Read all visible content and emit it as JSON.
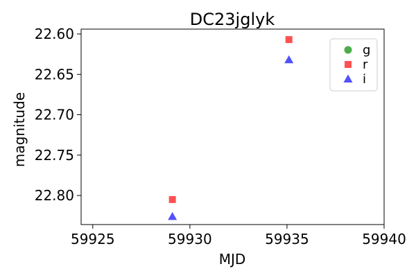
{
  "chart_data": {
    "type": "scatter",
    "title": "DC23jglyk",
    "xlabel": "MJD",
    "ylabel": "magnitude",
    "xlim": [
      59924.4,
      59940.0
    ],
    "ylim": [
      22.836,
      22.594
    ],
    "y_inverted": true,
    "grid": false,
    "legend_position": "top-right",
    "x_ticks": [
      {
        "value": 59925,
        "label": "59925"
      },
      {
        "value": 59930,
        "label": "59930"
      },
      {
        "value": 59935,
        "label": "59935"
      },
      {
        "value": 59940,
        "label": "59940"
      }
    ],
    "y_ticks": [
      {
        "value": 22.6,
        "label": "22.60"
      },
      {
        "value": 22.65,
        "label": "22.65"
      },
      {
        "value": 22.7,
        "label": "22.70"
      },
      {
        "value": 22.75,
        "label": "22.75"
      },
      {
        "value": 22.8,
        "label": "22.80"
      }
    ],
    "series": [
      {
        "name": "g",
        "marker": "circle",
        "color": "#2ca02c",
        "points": []
      },
      {
        "name": "r",
        "marker": "square",
        "color": "#ff3333",
        "points": [
          {
            "x": 59929.1,
            "y": 22.805
          },
          {
            "x": 59935.1,
            "y": 22.607
          }
        ]
      },
      {
        "name": "i",
        "marker": "triangle",
        "color": "#3333ff",
        "points": [
          {
            "x": 59929.1,
            "y": 22.826
          },
          {
            "x": 59935.1,
            "y": 22.632
          }
        ]
      }
    ]
  }
}
